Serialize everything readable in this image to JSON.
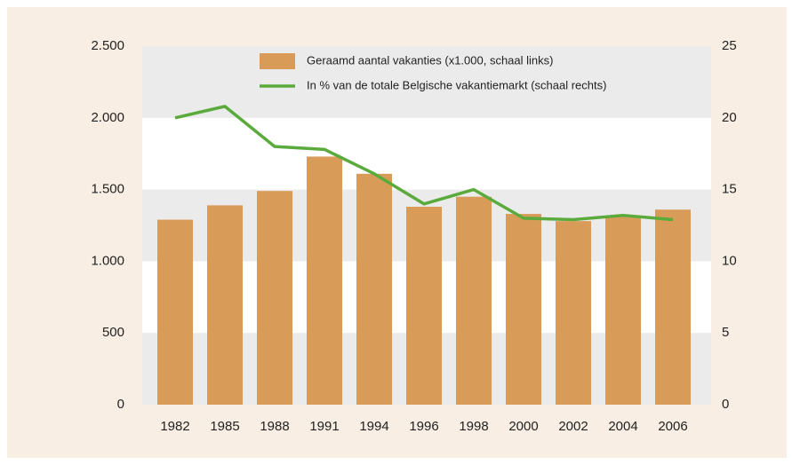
{
  "chart_data": {
    "type": "bar-line",
    "categories": [
      "1982",
      "1985",
      "1988",
      "1991",
      "1994",
      "1996",
      "1998",
      "2000",
      "2002",
      "2004",
      "2006"
    ],
    "series": [
      {
        "name": "Geraamd aantal vakanties (x1.000, schaal links)",
        "type": "bar",
        "color": "#d99b58",
        "axis": "y",
        "values": [
          1290,
          1390,
          1490,
          1730,
          1610,
          1380,
          1450,
          1330,
          1280,
          1310,
          1360
        ]
      },
      {
        "name": "In % van de totale Belgische vakantiemarkt (schaal rechts)",
        "type": "line",
        "color": "#5aaa3c",
        "axis": "y2",
        "values": [
          20,
          20.8,
          18,
          17.8,
          16.1,
          14,
          15,
          13,
          12.9,
          13.2,
          12.9
        ]
      }
    ],
    "ylim": [
      0,
      2500
    ],
    "yticks": [
      0,
      500,
      {
        "value": 1000,
        "label": "1.000"
      },
      {
        "value": 1500,
        "label": "1.500"
      },
      {
        "value": 2000,
        "label": "2.000"
      },
      {
        "value": 2500,
        "label": "2.500"
      }
    ],
    "y2lim": [
      0,
      25
    ],
    "y2ticks": [
      0,
      5,
      10,
      15,
      20,
      25
    ],
    "grid": true
  }
}
